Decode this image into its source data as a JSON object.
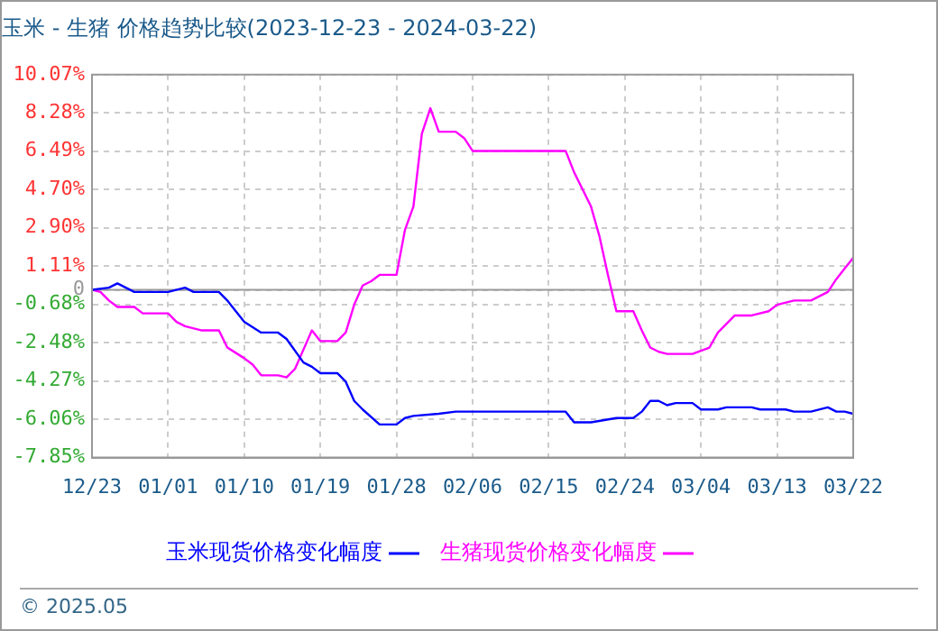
{
  "chart_data": {
    "type": "line",
    "title": "玉米 - 生猪 价格趋势比较(2023-12-23 - 2024-03-22)",
    "xlim": [
      "2023-12-23",
      "2024-03-22"
    ],
    "xticks": [
      {
        "value": "2023-12-23",
        "label": "12/23"
      },
      {
        "value": "2024-01-01",
        "label": "01/01"
      },
      {
        "value": "2024-01-10",
        "label": "01/10"
      },
      {
        "value": "2024-01-19",
        "label": "01/19"
      },
      {
        "value": "2024-01-28",
        "label": "01/28"
      },
      {
        "value": "2024-02-06",
        "label": "02/06"
      },
      {
        "value": "2024-02-15",
        "label": "02/15"
      },
      {
        "value": "2024-02-24",
        "label": "02/24"
      },
      {
        "value": "2024-03-04",
        "label": "03/04"
      },
      {
        "value": "2024-03-13",
        "label": "03/13"
      },
      {
        "value": "2024-03-22",
        "label": "03/22"
      }
    ],
    "ylim": [
      -7.85,
      10.07
    ],
    "yticks": [
      {
        "value": -7.85,
        "label": "-7.85%"
      },
      {
        "value": -6.06,
        "label": "-6.06%"
      },
      {
        "value": -4.27,
        "label": "-4.27%"
      },
      {
        "value": -2.48,
        "label": "-2.48%"
      },
      {
        "value": -0.68,
        "label": "-0.68%"
      },
      0,
      {
        "value": 1.11,
        "label": "1.11%"
      },
      {
        "value": 2.9,
        "label": "2.90%"
      },
      {
        "value": 4.7,
        "label": "4.70%"
      },
      {
        "value": 6.49,
        "label": "6.49%"
      },
      {
        "value": 8.28,
        "label": "8.28%"
      },
      {
        "value": 10.07,
        "label": "10.07%"
      }
    ],
    "grid": true,
    "legend": "bottom",
    "marker": "none",
    "line_style": "solid",
    "ref_lines": [
      {
        "axis": "y",
        "value": 0,
        "color": "#999999"
      }
    ],
    "annotations": [
      "© 2025.05"
    ],
    "series": [
      {
        "name": "玉米现货价格变化幅度",
        "color": "#0000ff",
        "x": [
          "2023-12-23",
          "2023-12-25",
          "2023-12-26",
          "2023-12-28",
          "2024-01-01",
          "2024-01-03",
          "2024-01-04",
          "2024-01-07",
          "2024-01-08",
          "2024-01-10",
          "2024-01-12",
          "2024-01-14",
          "2024-01-15",
          "2024-01-17",
          "2024-01-18",
          "2024-01-19",
          "2024-01-21",
          "2024-01-22",
          "2024-01-23",
          "2024-01-24",
          "2024-01-26",
          "2024-01-28",
          "2024-01-29",
          "2024-01-30",
          "2024-02-02",
          "2024-02-04",
          "2024-02-05",
          "2024-02-17",
          "2024-02-18",
          "2024-02-20",
          "2024-02-23",
          "2024-02-25",
          "2024-02-26",
          "2024-02-27",
          "2024-02-28",
          "2024-02-29",
          "2024-03-01",
          "2024-03-03",
          "2024-03-04",
          "2024-03-06",
          "2024-03-07",
          "2024-03-10",
          "2024-03-11",
          "2024-03-14",
          "2024-03-15",
          "2024-03-17",
          "2024-03-19",
          "2024-03-20",
          "2024-03-21",
          "2024-03-22"
        ],
        "values": [
          0,
          0.1,
          0.3,
          -0.1,
          -0.1,
          0.1,
          -0.1,
          -0.1,
          -0.5,
          -1.5,
          -2,
          -2,
          -2.3,
          -3.4,
          -3.6,
          -3.9,
          -3.9,
          -4.3,
          -5.2,
          -5.6,
          -6.3,
          -6.3,
          -6,
          -5.9,
          -5.8,
          -5.7,
          -5.7,
          -5.7,
          -6.2,
          -6.2,
          -6,
          -6,
          -5.7,
          -5.2,
          -5.2,
          -5.4,
          -5.3,
          -5.3,
          -5.6,
          -5.6,
          -5.5,
          -5.5,
          -5.6,
          -5.6,
          -5.7,
          -5.7,
          -5.5,
          -5.7,
          -5.7,
          -5.8
        ]
      },
      {
        "name": "生猪现货价格变化幅度",
        "color": "#ff00ff",
        "x": [
          "2023-12-23",
          "2023-12-24",
          "2023-12-25",
          "2023-12-26",
          "2023-12-28",
          "2023-12-29",
          "2024-01-01",
          "2024-01-02",
          "2024-01-03",
          "2024-01-05",
          "2024-01-07",
          "2024-01-08",
          "2024-01-10",
          "2024-01-11",
          "2024-01-12",
          "2024-01-14",
          "2024-01-15",
          "2024-01-16",
          "2024-01-17",
          "2024-01-18",
          "2024-01-19",
          "2024-01-21",
          "2024-01-22",
          "2024-01-23",
          "2024-01-24",
          "2024-01-25",
          "2024-01-26",
          "2024-01-28",
          "2024-01-29",
          "2024-01-30",
          "2024-01-31",
          "2024-02-01",
          "2024-02-02",
          "2024-02-04",
          "2024-02-05",
          "2024-02-06",
          "2024-02-17",
          "2024-02-18",
          "2024-02-20",
          "2024-02-21",
          "2024-02-22",
          "2024-02-23",
          "2024-02-25",
          "2024-02-26",
          "2024-02-27",
          "2024-02-28",
          "2024-02-29",
          "2024-03-03",
          "2024-03-05",
          "2024-03-06",
          "2024-03-08",
          "2024-03-10",
          "2024-03-12",
          "2024-03-13",
          "2024-03-15",
          "2024-03-17",
          "2024-03-19",
          "2024-03-20",
          "2024-03-21",
          "2024-03-22"
        ],
        "values": [
          0,
          -0.1,
          -0.5,
          -0.8,
          -0.8,
          -1.1,
          -1.1,
          -1.5,
          -1.7,
          -1.9,
          -1.9,
          -2.7,
          -3.2,
          -3.5,
          -4,
          -4,
          -4.1,
          -3.7,
          -2.8,
          -1.9,
          -2.4,
          -2.4,
          -2,
          -0.7,
          0.2,
          0.4,
          0.7,
          0.7,
          2.8,
          3.9,
          7.3,
          8.5,
          7.4,
          7.4,
          7.1,
          6.5,
          6.5,
          5.5,
          3.9,
          2.5,
          0.7,
          -1,
          -1,
          -1.9,
          -2.7,
          -2.9,
          -3,
          -3,
          -2.7,
          -2,
          -1.2,
          -1.2,
          -1,
          -0.7,
          -0.5,
          -0.5,
          -0.1,
          0.5,
          1,
          1.5
        ]
      }
    ]
  }
}
